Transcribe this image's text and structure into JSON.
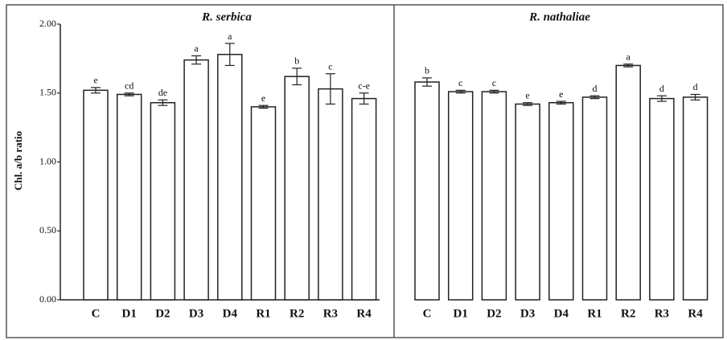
{
  "chart_data": {
    "type": "bar",
    "ylabel": "Chl. a/b ratio",
    "ylim": [
      0,
      2
    ],
    "yticks": [
      {
        "value": 0,
        "label": "0.00"
      },
      {
        "value": 0.5,
        "label": "0.50"
      },
      {
        "value": 1,
        "label": "1.00"
      },
      {
        "value": 1.5,
        "label": "1.50"
      },
      {
        "value": 2,
        "label": "2.00"
      }
    ],
    "panels": [
      {
        "title": "R. serbica",
        "categories": [
          "C",
          "D1",
          "D2",
          "D3",
          "D4",
          "R1",
          "R2",
          "R3",
          "R4"
        ],
        "values": [
          1.52,
          1.49,
          1.43,
          1.74,
          1.78,
          1.4,
          1.62,
          1.53,
          1.46
        ],
        "errors": [
          0.02,
          0.01,
          0.02,
          0.03,
          0.08,
          0.01,
          0.06,
          0.11,
          0.04
        ],
        "letters": [
          "e",
          "cd",
          "de",
          "a",
          "a",
          "e",
          "b",
          "c",
          "c-e"
        ]
      },
      {
        "title": "R. nathaliae",
        "categories": [
          "C",
          "D1",
          "D2",
          "D3",
          "D4",
          "R1",
          "R2",
          "R3",
          "R4"
        ],
        "values": [
          1.58,
          1.51,
          1.51,
          1.42,
          1.43,
          1.47,
          1.7,
          1.46,
          1.47
        ],
        "errors": [
          0.03,
          0.01,
          0.01,
          0.01,
          0.01,
          0.01,
          0.01,
          0.02,
          0.02
        ],
        "letters": [
          "b",
          "c",
          "c",
          "e",
          "e",
          "d",
          "a",
          "d",
          "d"
        ]
      }
    ]
  }
}
